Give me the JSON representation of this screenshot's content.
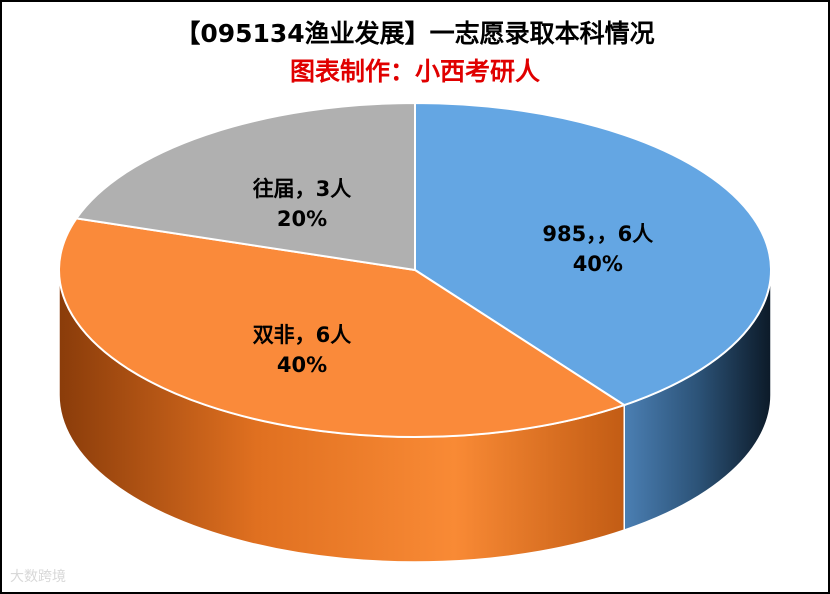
{
  "title": "【095134渔业发展】一志愿录取本科情况",
  "subtitle": "图表制作：小西考研人",
  "watermark": "大数跨境",
  "chart_data": {
    "type": "pie",
    "style": "3d",
    "slices": [
      {
        "name": "985，",
        "count": "6人",
        "value": 40,
        "percent": "40%",
        "color": "#64a6e3",
        "label": "985，，6人"
      },
      {
        "name": "双非",
        "count": "6人",
        "value": 40,
        "percent": "40%",
        "color": "#fa8a3a",
        "label": "双非，6人"
      },
      {
        "name": "往届",
        "count": "3人",
        "value": 20,
        "percent": "20%",
        "color": "#b0b0b0",
        "label": "往届，3人"
      }
    ]
  }
}
